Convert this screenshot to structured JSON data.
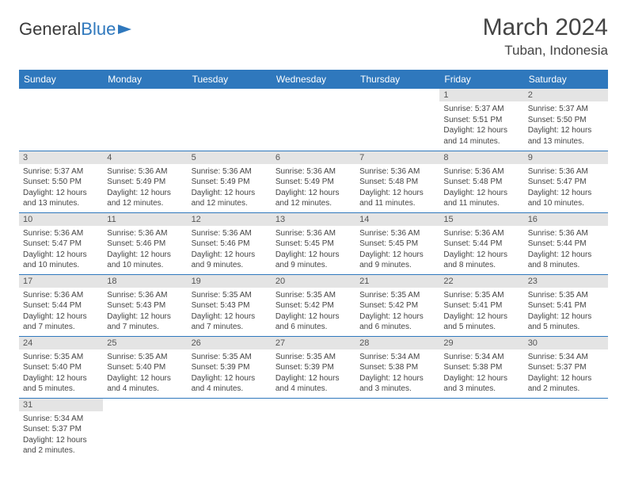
{
  "brand": {
    "part1": "General",
    "part2": "Blue"
  },
  "title": "March 2024",
  "location": "Tuban, Indonesia",
  "colors": {
    "header_bg": "#2f78bd",
    "header_text": "#ffffff",
    "daynum_bg": "#e4e4e4",
    "row_border": "#2f78bd",
    "text": "#444444"
  },
  "weekdays": [
    "Sunday",
    "Monday",
    "Tuesday",
    "Wednesday",
    "Thursday",
    "Friday",
    "Saturday"
  ],
  "weeks": [
    [
      {
        "n": "",
        "sr": "",
        "ss": "",
        "d1": "",
        "d2": ""
      },
      {
        "n": "",
        "sr": "",
        "ss": "",
        "d1": "",
        "d2": ""
      },
      {
        "n": "",
        "sr": "",
        "ss": "",
        "d1": "",
        "d2": ""
      },
      {
        "n": "",
        "sr": "",
        "ss": "",
        "d1": "",
        "d2": ""
      },
      {
        "n": "",
        "sr": "",
        "ss": "",
        "d1": "",
        "d2": ""
      },
      {
        "n": "1",
        "sr": "Sunrise: 5:37 AM",
        "ss": "Sunset: 5:51 PM",
        "d1": "Daylight: 12 hours",
        "d2": "and 14 minutes."
      },
      {
        "n": "2",
        "sr": "Sunrise: 5:37 AM",
        "ss": "Sunset: 5:50 PM",
        "d1": "Daylight: 12 hours",
        "d2": "and 13 minutes."
      }
    ],
    [
      {
        "n": "3",
        "sr": "Sunrise: 5:37 AM",
        "ss": "Sunset: 5:50 PM",
        "d1": "Daylight: 12 hours",
        "d2": "and 13 minutes."
      },
      {
        "n": "4",
        "sr": "Sunrise: 5:36 AM",
        "ss": "Sunset: 5:49 PM",
        "d1": "Daylight: 12 hours",
        "d2": "and 12 minutes."
      },
      {
        "n": "5",
        "sr": "Sunrise: 5:36 AM",
        "ss": "Sunset: 5:49 PM",
        "d1": "Daylight: 12 hours",
        "d2": "and 12 minutes."
      },
      {
        "n": "6",
        "sr": "Sunrise: 5:36 AM",
        "ss": "Sunset: 5:49 PM",
        "d1": "Daylight: 12 hours",
        "d2": "and 12 minutes."
      },
      {
        "n": "7",
        "sr": "Sunrise: 5:36 AM",
        "ss": "Sunset: 5:48 PM",
        "d1": "Daylight: 12 hours",
        "d2": "and 11 minutes."
      },
      {
        "n": "8",
        "sr": "Sunrise: 5:36 AM",
        "ss": "Sunset: 5:48 PM",
        "d1": "Daylight: 12 hours",
        "d2": "and 11 minutes."
      },
      {
        "n": "9",
        "sr": "Sunrise: 5:36 AM",
        "ss": "Sunset: 5:47 PM",
        "d1": "Daylight: 12 hours",
        "d2": "and 10 minutes."
      }
    ],
    [
      {
        "n": "10",
        "sr": "Sunrise: 5:36 AM",
        "ss": "Sunset: 5:47 PM",
        "d1": "Daylight: 12 hours",
        "d2": "and 10 minutes."
      },
      {
        "n": "11",
        "sr": "Sunrise: 5:36 AM",
        "ss": "Sunset: 5:46 PM",
        "d1": "Daylight: 12 hours",
        "d2": "and 10 minutes."
      },
      {
        "n": "12",
        "sr": "Sunrise: 5:36 AM",
        "ss": "Sunset: 5:46 PM",
        "d1": "Daylight: 12 hours",
        "d2": "and 9 minutes."
      },
      {
        "n": "13",
        "sr": "Sunrise: 5:36 AM",
        "ss": "Sunset: 5:45 PM",
        "d1": "Daylight: 12 hours",
        "d2": "and 9 minutes."
      },
      {
        "n": "14",
        "sr": "Sunrise: 5:36 AM",
        "ss": "Sunset: 5:45 PM",
        "d1": "Daylight: 12 hours",
        "d2": "and 9 minutes."
      },
      {
        "n": "15",
        "sr": "Sunrise: 5:36 AM",
        "ss": "Sunset: 5:44 PM",
        "d1": "Daylight: 12 hours",
        "d2": "and 8 minutes."
      },
      {
        "n": "16",
        "sr": "Sunrise: 5:36 AM",
        "ss": "Sunset: 5:44 PM",
        "d1": "Daylight: 12 hours",
        "d2": "and 8 minutes."
      }
    ],
    [
      {
        "n": "17",
        "sr": "Sunrise: 5:36 AM",
        "ss": "Sunset: 5:44 PM",
        "d1": "Daylight: 12 hours",
        "d2": "and 7 minutes."
      },
      {
        "n": "18",
        "sr": "Sunrise: 5:36 AM",
        "ss": "Sunset: 5:43 PM",
        "d1": "Daylight: 12 hours",
        "d2": "and 7 minutes."
      },
      {
        "n": "19",
        "sr": "Sunrise: 5:35 AM",
        "ss": "Sunset: 5:43 PM",
        "d1": "Daylight: 12 hours",
        "d2": "and 7 minutes."
      },
      {
        "n": "20",
        "sr": "Sunrise: 5:35 AM",
        "ss": "Sunset: 5:42 PM",
        "d1": "Daylight: 12 hours",
        "d2": "and 6 minutes."
      },
      {
        "n": "21",
        "sr": "Sunrise: 5:35 AM",
        "ss": "Sunset: 5:42 PM",
        "d1": "Daylight: 12 hours",
        "d2": "and 6 minutes."
      },
      {
        "n": "22",
        "sr": "Sunrise: 5:35 AM",
        "ss": "Sunset: 5:41 PM",
        "d1": "Daylight: 12 hours",
        "d2": "and 5 minutes."
      },
      {
        "n": "23",
        "sr": "Sunrise: 5:35 AM",
        "ss": "Sunset: 5:41 PM",
        "d1": "Daylight: 12 hours",
        "d2": "and 5 minutes."
      }
    ],
    [
      {
        "n": "24",
        "sr": "Sunrise: 5:35 AM",
        "ss": "Sunset: 5:40 PM",
        "d1": "Daylight: 12 hours",
        "d2": "and 5 minutes."
      },
      {
        "n": "25",
        "sr": "Sunrise: 5:35 AM",
        "ss": "Sunset: 5:40 PM",
        "d1": "Daylight: 12 hours",
        "d2": "and 4 minutes."
      },
      {
        "n": "26",
        "sr": "Sunrise: 5:35 AM",
        "ss": "Sunset: 5:39 PM",
        "d1": "Daylight: 12 hours",
        "d2": "and 4 minutes."
      },
      {
        "n": "27",
        "sr": "Sunrise: 5:35 AM",
        "ss": "Sunset: 5:39 PM",
        "d1": "Daylight: 12 hours",
        "d2": "and 4 minutes."
      },
      {
        "n": "28",
        "sr": "Sunrise: 5:34 AM",
        "ss": "Sunset: 5:38 PM",
        "d1": "Daylight: 12 hours",
        "d2": "and 3 minutes."
      },
      {
        "n": "29",
        "sr": "Sunrise: 5:34 AM",
        "ss": "Sunset: 5:38 PM",
        "d1": "Daylight: 12 hours",
        "d2": "and 3 minutes."
      },
      {
        "n": "30",
        "sr": "Sunrise: 5:34 AM",
        "ss": "Sunset: 5:37 PM",
        "d1": "Daylight: 12 hours",
        "d2": "and 2 minutes."
      }
    ],
    [
      {
        "n": "31",
        "sr": "Sunrise: 5:34 AM",
        "ss": "Sunset: 5:37 PM",
        "d1": "Daylight: 12 hours",
        "d2": "and 2 minutes."
      },
      {
        "n": "",
        "sr": "",
        "ss": "",
        "d1": "",
        "d2": ""
      },
      {
        "n": "",
        "sr": "",
        "ss": "",
        "d1": "",
        "d2": ""
      },
      {
        "n": "",
        "sr": "",
        "ss": "",
        "d1": "",
        "d2": ""
      },
      {
        "n": "",
        "sr": "",
        "ss": "",
        "d1": "",
        "d2": ""
      },
      {
        "n": "",
        "sr": "",
        "ss": "",
        "d1": "",
        "d2": ""
      },
      {
        "n": "",
        "sr": "",
        "ss": "",
        "d1": "",
        "d2": ""
      }
    ]
  ]
}
